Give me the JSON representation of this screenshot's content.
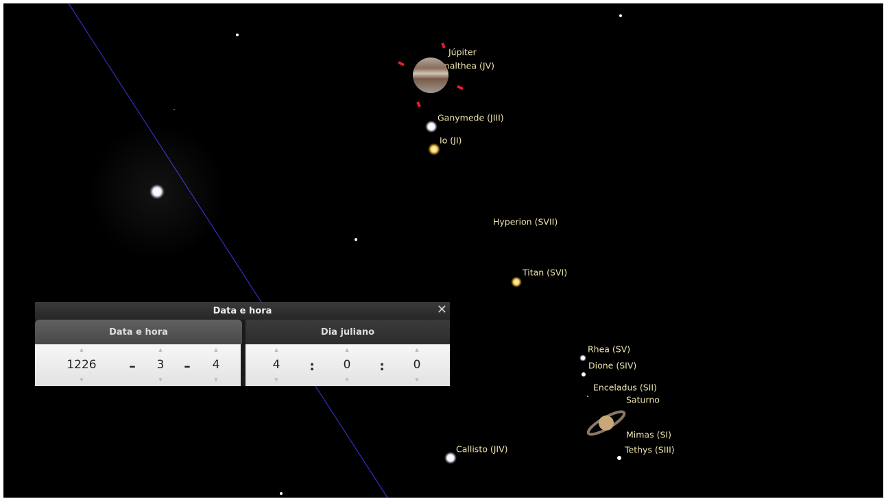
{
  "sky_labels": [
    "Júpiter",
    "Amalthea (JV)",
    "Ganymede (JIII)",
    "Io (JI)",
    "Hyperion (SVII)",
    "Titan (SVI)",
    "Rhea (SV)",
    "Dione (SIV)",
    "Enceladus (SII)",
    "Saturno",
    "Mimas (SI)",
    "Tethys (SIII)",
    "Callisto (JIV)"
  ],
  "dialog": {
    "title": "Data e hora",
    "tabs": [
      "Data e hora",
      "Dia juliano"
    ],
    "date_fields": [
      "1226",
      "3",
      "4"
    ],
    "time_fields": [
      "4",
      "0",
      "0"
    ],
    "date_separator": "–",
    "time_separator": ":"
  }
}
